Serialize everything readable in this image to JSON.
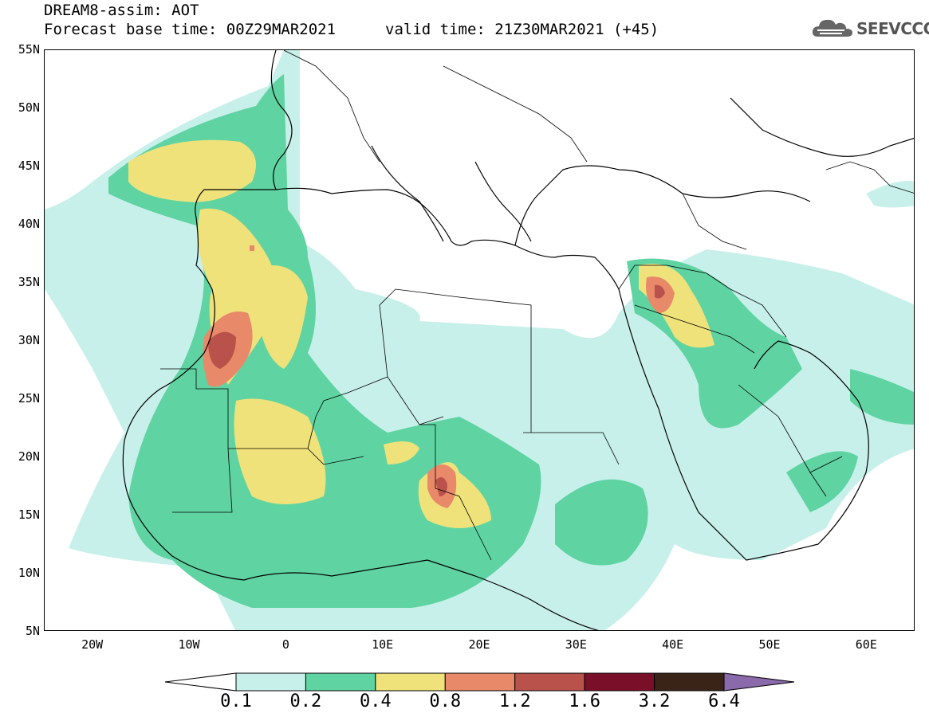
{
  "header": {
    "title": "DREAM8-assim: AOT",
    "base_time": "Forecast base time: 00Z29MAR2021",
    "valid_time": "valid time: 21Z30MAR2021 (+45)",
    "logo_text": "SEEVCCC",
    "logo_icon": "cloud-icon"
  },
  "map": {
    "projection": "lat-lon",
    "lon_range": [
      -25,
      65
    ],
    "lat_range": [
      5,
      55
    ],
    "lat_labels": [
      "55N",
      "50N",
      "45N",
      "40N",
      "35N",
      "30N",
      "25N",
      "20N",
      "15N",
      "10N",
      "5N"
    ],
    "lon_labels": [
      "20W",
      "10W",
      "0",
      "10E",
      "20E",
      "30E",
      "40E",
      "50E",
      "60E"
    ]
  },
  "colorbar": {
    "labels": [
      "0.1",
      "0.2",
      "0.4",
      "0.8",
      "1.2",
      "1.6",
      "3.2",
      "6.4"
    ],
    "colors": [
      "#c8f0ea",
      "#5fd4a2",
      "#f0e27a",
      "#e8896a",
      "#b8524a",
      "#7a0f2a",
      "#3a2418",
      "#8a6aaa"
    ],
    "under_color": "#ffffff"
  },
  "aot_levels": {
    "c1": "#c8f0ea",
    "c2": "#5fd4a2",
    "c3": "#f0e27a",
    "c4": "#e8896a",
    "c5": "#b8524a"
  }
}
